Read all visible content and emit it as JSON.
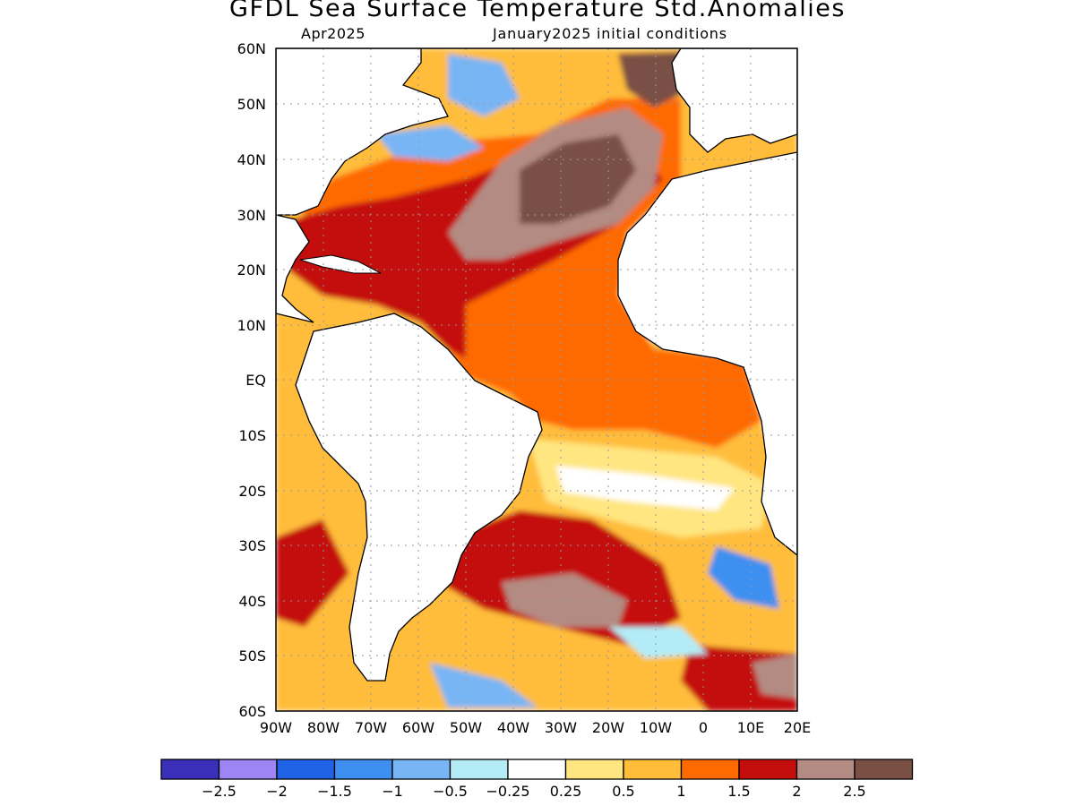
{
  "title": "GFDL Sea Surface Temperature Std.Anomalies",
  "subtitle_left": "Apr2025",
  "subtitle_right": "January2025 initial conditions",
  "map": {
    "lat_range": [
      -60,
      60
    ],
    "lon_range": [
      -90,
      20
    ],
    "lat_labels": [
      "60N",
      "50N",
      "40N",
      "30N",
      "20N",
      "10N",
      "EQ",
      "10S",
      "20S",
      "30S",
      "40S",
      "50S",
      "60S"
    ],
    "lon_labels": [
      "90W",
      "80W",
      "70W",
      "60W",
      "50W",
      "40W",
      "30W",
      "20W",
      "10W",
      "0",
      "10E",
      "20E"
    ],
    "grid": "dotted"
  },
  "colorbar": {
    "colors": [
      "#3a2fb8",
      "#9d85f5",
      "#1f62e6",
      "#3e8ff0",
      "#78b5f5",
      "#b3ecf7",
      "#ffffff",
      "#ffe680",
      "#ffbd3a",
      "#ff6a00",
      "#c40d0d",
      "#b38b82",
      "#7a4f44"
    ],
    "labels": [
      "−2.5",
      "−2",
      "−1.5",
      "−1",
      "−0.5",
      "−0.25",
      "0.25",
      "0.5",
      "1",
      "1.5",
      "2",
      "2.5"
    ]
  },
  "anomaly_regions": [
    {
      "level": "1",
      "color": "#ffbd3a"
    },
    {
      "level": "1.5",
      "color": "#ff6a00"
    },
    {
      "level": "2",
      "color": "#c40d0d"
    },
    {
      "level": "2.5",
      "color": "#b38b82"
    },
    {
      "level": ">2.5",
      "color": "#7a4f44"
    },
    {
      "level": "-0.5",
      "color": "#78b5f5"
    },
    {
      "level": "-1",
      "color": "#3e8ff0"
    }
  ]
}
